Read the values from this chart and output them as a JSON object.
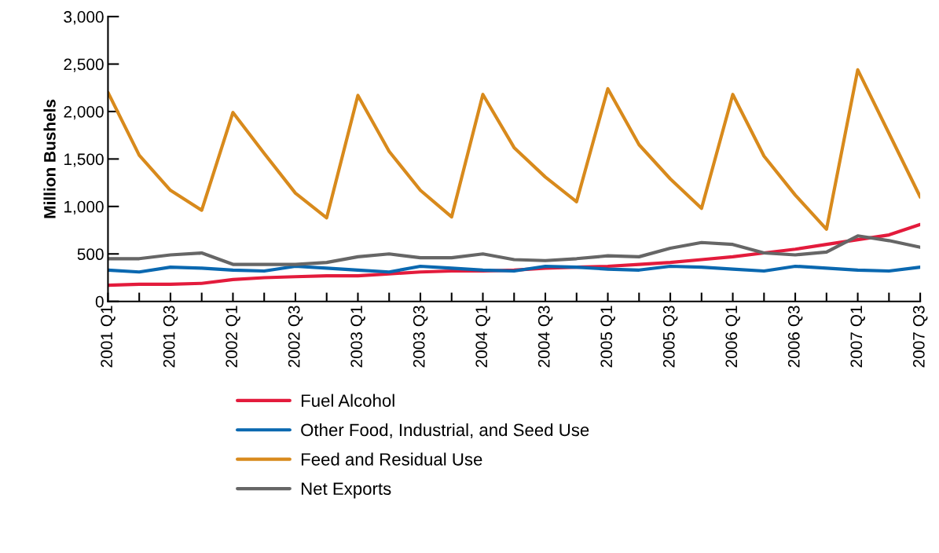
{
  "chart_data": {
    "type": "line",
    "ylabel": "Million Bushels",
    "categories": [
      "2001 Q1",
      null,
      "2001 Q3",
      null,
      "2002 Q1",
      null,
      "2002 Q3",
      null,
      "2003 Q1",
      null,
      "2003 Q3",
      null,
      "2004 Q1",
      null,
      "2004 Q3",
      null,
      "2005 Q1",
      null,
      "2005 Q3",
      null,
      "2006 Q1",
      null,
      "2006 Q3",
      null,
      "2007 Q1",
      null,
      "2007 Q3"
    ],
    "ylim": [
      0,
      3000
    ],
    "yticks": [
      0,
      {
        "value": 500,
        "label": "500"
      },
      {
        "value": 1000,
        "label": "1,000"
      },
      {
        "value": 1500,
        "label": "1,500"
      },
      {
        "value": 2000,
        "label": "2,000"
      },
      {
        "value": 2500,
        "label": "2,500"
      },
      {
        "value": 3000,
        "label": "3,000"
      }
    ],
    "grid": false,
    "legend": "bottom",
    "marker": "none",
    "line_style": "solid",
    "series": [
      {
        "name": "Fuel Alcohol",
        "color": "#e31b3c",
        "values": [
          170,
          180,
          180,
          190,
          230,
          250,
          260,
          270,
          270,
          290,
          310,
          320,
          320,
          330,
          350,
          360,
          370,
          390,
          410,
          440,
          470,
          510,
          550,
          600,
          650,
          700,
          810
        ]
      },
      {
        "name": "Other Food, Industrial, and Seed Use",
        "color": "#0a68b0",
        "values": [
          330,
          310,
          360,
          350,
          330,
          320,
          370,
          350,
          330,
          310,
          370,
          350,
          330,
          320,
          370,
          360,
          340,
          330,
          370,
          360,
          340,
          320,
          370,
          350,
          330,
          320,
          360
        ]
      },
      {
        "name": "Feed and Residual Use",
        "color": "#d88a1c",
        "values": [
          2200,
          1540,
          1170,
          960,
          1990,
          1560,
          1140,
          880,
          2170,
          1580,
          1170,
          890,
          2180,
          1620,
          1310,
          1050,
          2240,
          1650,
          1290,
          980,
          2180,
          1530,
          1120,
          760,
          2440,
          1770,
          1100
        ]
      },
      {
        "name": "Net Exports",
        "color": "#666666",
        "values": [
          450,
          450,
          490,
          510,
          390,
          390,
          390,
          410,
          470,
          500,
          460,
          460,
          500,
          440,
          430,
          450,
          480,
          470,
          560,
          620,
          600,
          510,
          490,
          520,
          690,
          640,
          570
        ]
      }
    ]
  }
}
